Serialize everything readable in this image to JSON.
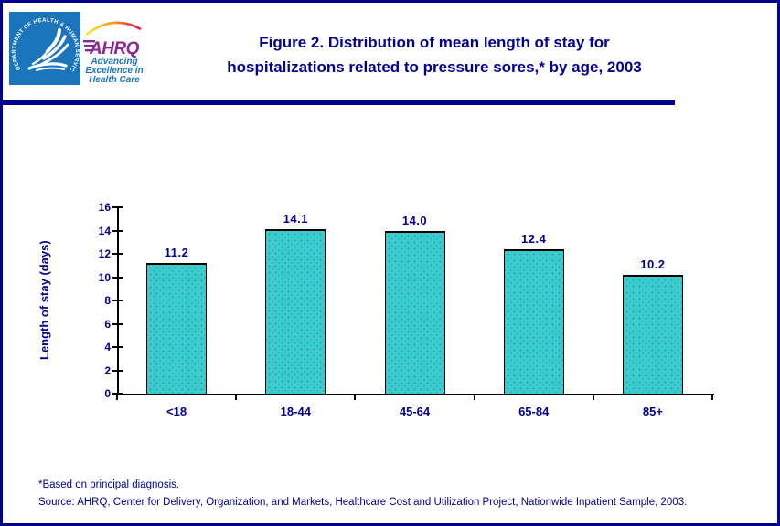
{
  "page": {
    "background": "#FFFFFF",
    "border_color": "#000090"
  },
  "header": {
    "logo": {
      "hhs_circular_text": "DEPARTMENT OF HEALTH & HUMAN SERVICES • USA",
      "ahrq_acronym": "AHRQ",
      "tagline_line1": "Advancing",
      "tagline_line2": "Excellence in",
      "tagline_line3": "Health Care",
      "hhs_blue": "#1B75BC",
      "ahrq_purple": "#8A2890"
    },
    "title_line1": "Figure 2. Distribution of mean length of stay for",
    "title_line2": "hospitalizations related to pressure sores,* by age, 2003"
  },
  "chart_data": {
    "type": "bar",
    "title": "Figure 2. Distribution of mean length of stay for hospitalizations related to pressure sores,* by age, 2003",
    "categories": [
      "<18",
      "18-44",
      "45-64",
      "65-84",
      "85+"
    ],
    "values": [
      11.2,
      14.1,
      14.0,
      12.4,
      10.2
    ],
    "value_labels": [
      "11.2",
      "14.1",
      "14.0",
      "12.4",
      "10.2"
    ],
    "xlabel": "",
    "ylabel": "Length of stay (days)",
    "ylim": [
      0,
      16
    ],
    "ytick_step": 2,
    "grid": false,
    "legend": false,
    "bar_color": "#3BCDCD",
    "bar_border_color": "#000000",
    "label_color": "#000090"
  },
  "footnotes": {
    "note": "*Based on principal diagnosis.",
    "source": "Source: AHRQ, Center for Delivery, Organization, and Markets, Healthcare Cost and Utilization Project, Nationwide Inpatient Sample, 2003."
  }
}
